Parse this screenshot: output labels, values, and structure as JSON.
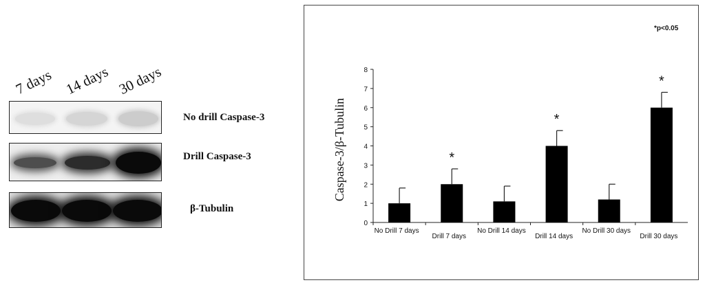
{
  "blot": {
    "lanes": [
      "7 days",
      "14 days",
      "30 days"
    ],
    "rows": [
      {
        "label": "No drill Caspase-3",
        "intensity": [
          0.06,
          0.1,
          0.14
        ]
      },
      {
        "label": "Drill Caspase-3",
        "intensity": [
          0.7,
          0.85,
          1.0
        ]
      },
      {
        "label": "β-Tubulin",
        "intensity": [
          1.0,
          1.0,
          1.0
        ]
      }
    ]
  },
  "chart_data": {
    "type": "bar",
    "categories": [
      "No Drill 7 days",
      "Drill 7 days",
      "No Drill 14 days",
      "Drill 14 days",
      "No Drill 30 days",
      "Drill 30 days"
    ],
    "values": [
      1.0,
      2.0,
      1.1,
      4.0,
      1.2,
      6.0
    ],
    "errors": [
      0.8,
      0.8,
      0.8,
      0.8,
      0.8,
      0.8
    ],
    "significant": [
      false,
      true,
      false,
      true,
      false,
      true
    ],
    "significance_marker": "*",
    "annotation": "*p<0.05",
    "ylabel": "Caspase-3/β-Tubulin",
    "xlabel": "",
    "ylim": [
      0,
      8
    ],
    "yticks": [
      0,
      1,
      2,
      3,
      4,
      5,
      6,
      7,
      8
    ],
    "bar_color": "#000000",
    "grid": false
  }
}
